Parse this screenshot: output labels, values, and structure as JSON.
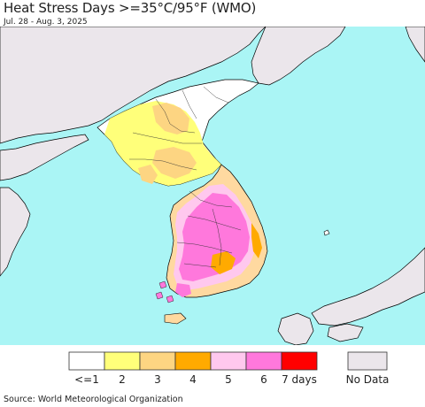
{
  "header": {
    "title": "Heat Stress Days >=35°C/95°F (WMO)",
    "subtitle": "Jul. 28 - Aug. 3, 2025"
  },
  "colors": {
    "ocean": "#aaf5f5",
    "land_base": "#ffffff",
    "no_data_land": "#ebe6eb",
    "border_line": "#000000"
  },
  "legend": {
    "bins": [
      {
        "label": "<=1",
        "color": "#ffffff"
      },
      {
        "label": "2",
        "color": "#ffff7a"
      },
      {
        "label": "3",
        "color": "#fdd582"
      },
      {
        "label": "4",
        "color": "#ffaa00"
      },
      {
        "label": "5",
        "color": "#ffc8ee"
      },
      {
        "label": "6",
        "color": "#ff78dc"
      },
      {
        "label": "7 days",
        "color": "#ff0000"
      }
    ],
    "no_data": {
      "label": "No Data",
      "color": "#ebe6eb"
    }
  },
  "footer": {
    "source": "Source: World Meteorological Organization"
  }
}
